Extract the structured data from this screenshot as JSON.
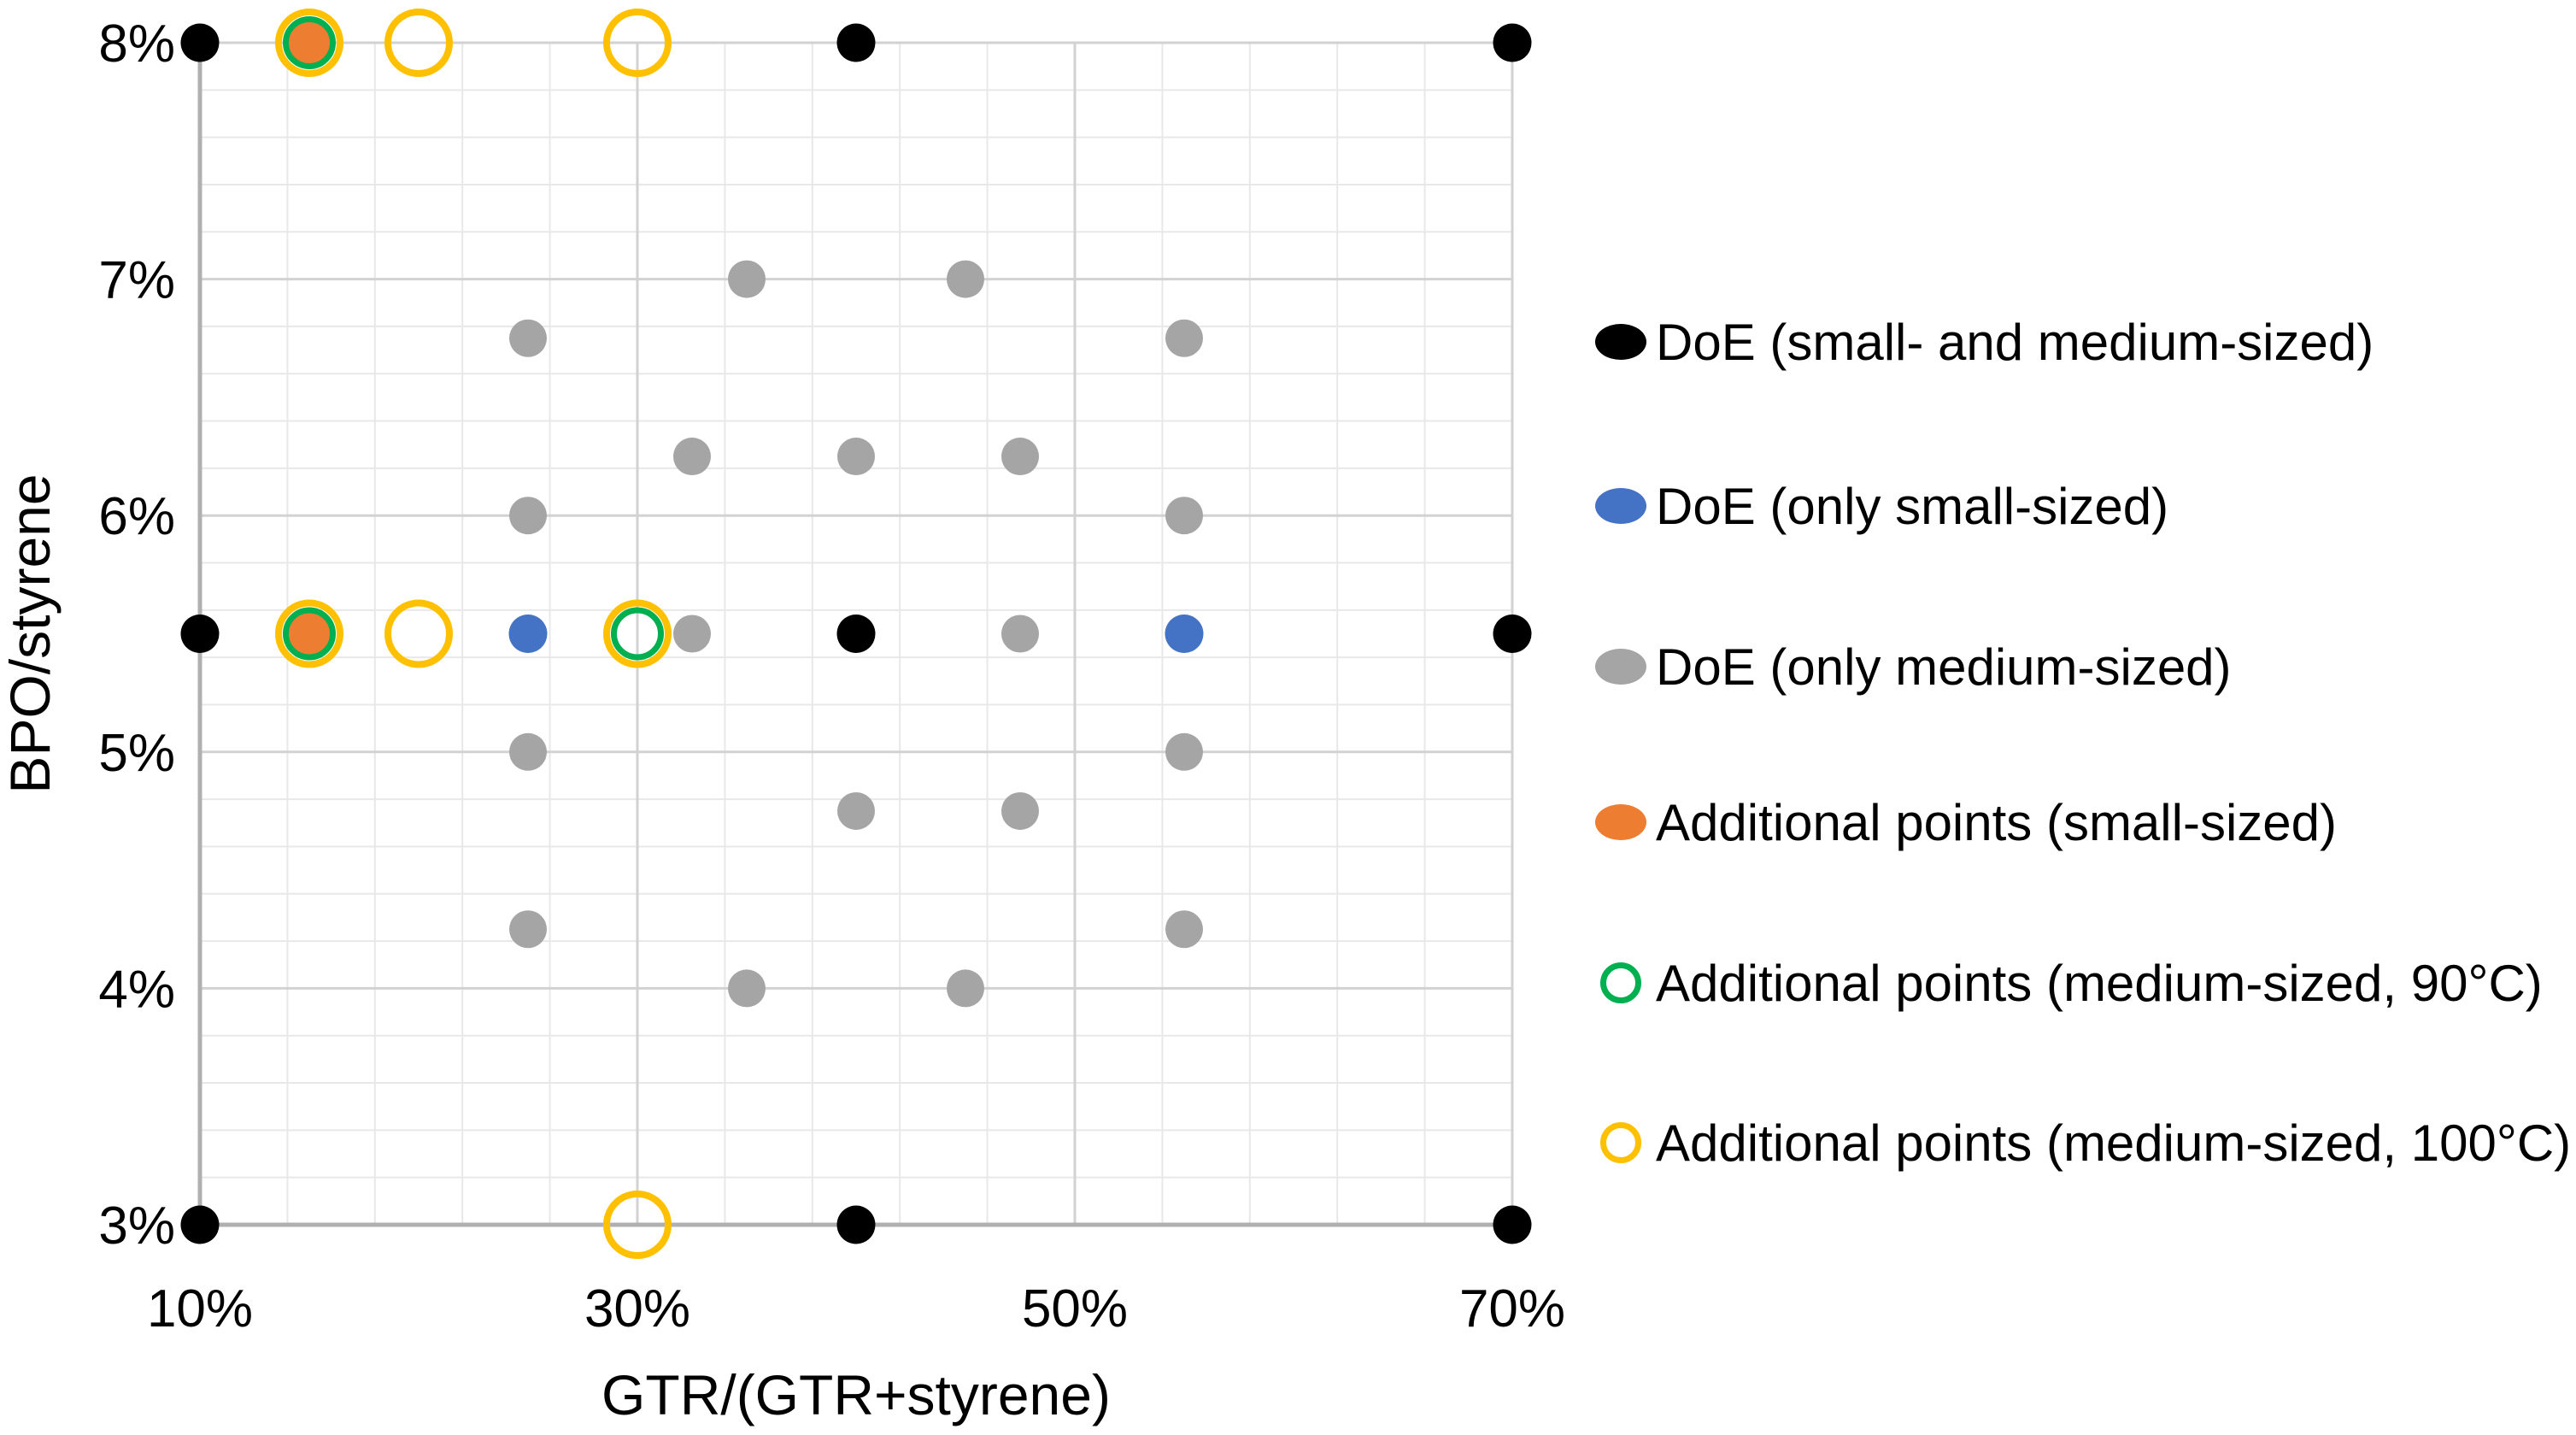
{
  "chart_data": {
    "type": "scatter",
    "title": "",
    "xlabel": "GTR/(GTR+styrene)",
    "ylabel": "BPO/styrene",
    "xlim": [
      10,
      70
    ],
    "ylim": [
      3,
      8
    ],
    "x_major_ticks": [
      {
        "value": 10,
        "label": "10%"
      },
      {
        "value": 30,
        "label": "30%"
      },
      {
        "value": 50,
        "label": "50%"
      },
      {
        "value": 70,
        "label": "70%"
      }
    ],
    "y_major_ticks": [
      {
        "value": 8,
        "label": "8%"
      },
      {
        "value": 7,
        "label": "7%"
      },
      {
        "value": 6,
        "label": "6%"
      },
      {
        "value": 5,
        "label": "5%"
      },
      {
        "value": 4,
        "label": "4%"
      },
      {
        "value": 3,
        "label": "3%"
      }
    ],
    "x_minor_step": 4,
    "y_minor_step": 0.2,
    "y_major_step": 1,
    "grid": "on",
    "legend_position": "right",
    "series": [
      {
        "name": "DoE (small- and medium-sized)",
        "color": "#000000",
        "marker": "circle",
        "diameter": 45,
        "points": [
          [
            10,
            8
          ],
          [
            40,
            8
          ],
          [
            70,
            8
          ],
          [
            10,
            5.5
          ],
          [
            40,
            5.5
          ],
          [
            70,
            5.5
          ],
          [
            10,
            3
          ],
          [
            40,
            3
          ],
          [
            70,
            3
          ]
        ]
      },
      {
        "name": "DoE (only small-sized)",
        "color": "#4472C4",
        "marker": "circle",
        "diameter": 45,
        "points": [
          [
            25,
            5.5
          ],
          [
            55,
            5.5
          ]
        ]
      },
      {
        "name": "DoE (only medium-sized)",
        "color": "#A5A5A5",
        "marker": "circle",
        "diameter": 44,
        "points": [
          [
            35,
            7
          ],
          [
            45,
            7
          ],
          [
            25,
            6.75
          ],
          [
            55,
            6.75
          ],
          [
            32.5,
            6.25
          ],
          [
            40,
            6.25
          ],
          [
            47.5,
            6.25
          ],
          [
            25,
            6
          ],
          [
            55,
            6
          ],
          [
            32.5,
            5.5
          ],
          [
            47.5,
            5.5
          ],
          [
            25,
            5
          ],
          [
            55,
            5
          ],
          [
            40,
            4.75
          ],
          [
            47.5,
            4.75
          ],
          [
            25,
            4.25
          ],
          [
            55,
            4.25
          ],
          [
            35,
            4
          ],
          [
            45,
            4
          ]
        ]
      },
      {
        "name": "Additional points (small-sized)",
        "color": "#ED7D31",
        "marker": "circle",
        "diameter": 50,
        "points": [
          [
            15,
            8
          ],
          [
            15,
            5.5
          ]
        ]
      },
      {
        "name": "Additional points (medium-sized, 90°C)",
        "color": "#00B050",
        "marker": "ring",
        "diameter": 62,
        "stroke_width": 7,
        "points": [
          [
            15,
            8
          ],
          [
            15,
            5.5
          ],
          [
            30,
            5.5
          ]
        ]
      },
      {
        "name": "Additional points (medium-sized, 100°C)",
        "color": "#FFC000",
        "marker": "ring",
        "diameter": 80,
        "stroke_width": 8,
        "points": [
          [
            15,
            8
          ],
          [
            20,
            8
          ],
          [
            30,
            8
          ],
          [
            15,
            5.5
          ],
          [
            20,
            5.5
          ],
          [
            30,
            5.5
          ],
          [
            30,
            3
          ]
        ]
      }
    ]
  },
  "style_colors": {
    "minor_grid": "#e8e8e8",
    "major_grid": "#d2d2d2",
    "axis_line": "#b0b0b0",
    "text": "#000000"
  }
}
